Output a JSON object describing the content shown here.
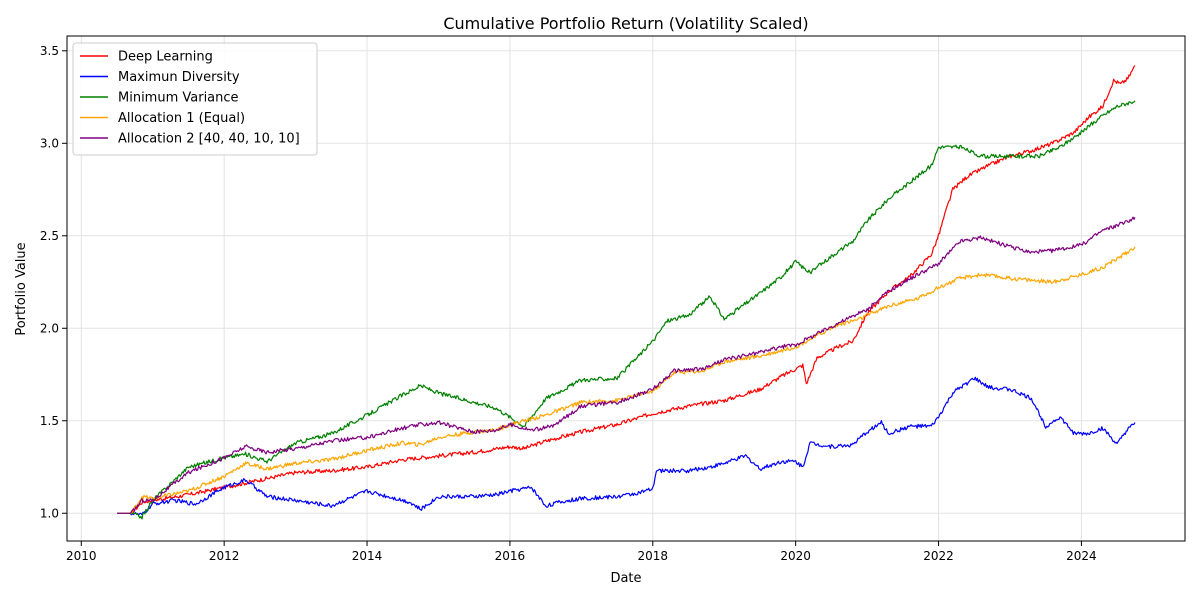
{
  "chart_data": {
    "type": "line",
    "title": "Cumulative Portfolio Return (Volatility Scaled)",
    "xlabel": "Date",
    "ylabel": "Portfolio Value",
    "xlim": [
      2009.8,
      2025.45
    ],
    "ylim": [
      0.85,
      3.58
    ],
    "xticks": [
      2010,
      2012,
      2014,
      2016,
      2018,
      2020,
      2022,
      2024
    ],
    "yticks": [
      1.0,
      1.5,
      2.0,
      2.5,
      3.0,
      3.5
    ],
    "grid": true,
    "legend_position": "top-left",
    "series": [
      {
        "name": "Deep Learning",
        "color": "#ff0000",
        "points": [
          [
            2010.5,
            1.0
          ],
          [
            2010.7,
            1.0
          ],
          [
            2010.85,
            1.06
          ],
          [
            2011.0,
            1.07
          ],
          [
            2011.5,
            1.1
          ],
          [
            2012.0,
            1.14
          ],
          [
            2012.5,
            1.18
          ],
          [
            2013.0,
            1.22
          ],
          [
            2013.5,
            1.23
          ],
          [
            2014.0,
            1.25
          ],
          [
            2014.5,
            1.29
          ],
          [
            2015.0,
            1.31
          ],
          [
            2015.5,
            1.33
          ],
          [
            2016.0,
            1.36
          ],
          [
            2016.2,
            1.35
          ],
          [
            2016.5,
            1.39
          ],
          [
            2017.0,
            1.44
          ],
          [
            2017.5,
            1.48
          ],
          [
            2018.0,
            1.54
          ],
          [
            2018.5,
            1.58
          ],
          [
            2019.0,
            1.61
          ],
          [
            2019.5,
            1.67
          ],
          [
            2019.8,
            1.74
          ],
          [
            2020.1,
            1.8
          ],
          [
            2020.15,
            1.7
          ],
          [
            2020.3,
            1.84
          ],
          [
            2020.6,
            1.9
          ],
          [
            2020.8,
            1.93
          ],
          [
            2021.0,
            2.08
          ],
          [
            2021.3,
            2.2
          ],
          [
            2021.6,
            2.28
          ],
          [
            2021.9,
            2.4
          ],
          [
            2022.0,
            2.5
          ],
          [
            2022.1,
            2.63
          ],
          [
            2022.2,
            2.75
          ],
          [
            2022.4,
            2.82
          ],
          [
            2022.7,
            2.88
          ],
          [
            2023.0,
            2.93
          ],
          [
            2023.3,
            2.96
          ],
          [
            2023.6,
            3.0
          ],
          [
            2023.9,
            3.06
          ],
          [
            2024.1,
            3.14
          ],
          [
            2024.3,
            3.2
          ],
          [
            2024.45,
            3.34
          ],
          [
            2024.55,
            3.32
          ],
          [
            2024.65,
            3.35
          ],
          [
            2024.75,
            3.42
          ]
        ]
      },
      {
        "name": "Maximun Diversity",
        "color": "#0000ff",
        "points": [
          [
            2010.5,
            1.0
          ],
          [
            2010.7,
            1.0
          ],
          [
            2010.85,
            0.99
          ],
          [
            2011.0,
            1.05
          ],
          [
            2011.3,
            1.07
          ],
          [
            2011.6,
            1.05
          ],
          [
            2012.0,
            1.14
          ],
          [
            2012.3,
            1.18
          ],
          [
            2012.6,
            1.09
          ],
          [
            2013.0,
            1.07
          ],
          [
            2013.5,
            1.04
          ],
          [
            2014.0,
            1.12
          ],
          [
            2014.3,
            1.09
          ],
          [
            2014.6,
            1.06
          ],
          [
            2014.75,
            1.02
          ],
          [
            2015.0,
            1.09
          ],
          [
            2015.5,
            1.09
          ],
          [
            2015.8,
            1.1
          ],
          [
            2016.0,
            1.12
          ],
          [
            2016.3,
            1.14
          ],
          [
            2016.5,
            1.04
          ],
          [
            2016.7,
            1.06
          ],
          [
            2017.0,
            1.08
          ],
          [
            2017.5,
            1.09
          ],
          [
            2017.8,
            1.11
          ],
          [
            2018.0,
            1.13
          ],
          [
            2018.05,
            1.23
          ],
          [
            2018.5,
            1.23
          ],
          [
            2018.8,
            1.25
          ],
          [
            2019.0,
            1.27
          ],
          [
            2019.3,
            1.31
          ],
          [
            2019.5,
            1.24
          ],
          [
            2019.8,
            1.28
          ],
          [
            2020.0,
            1.28
          ],
          [
            2020.1,
            1.25
          ],
          [
            2020.2,
            1.38
          ],
          [
            2020.5,
            1.36
          ],
          [
            2020.8,
            1.37
          ],
          [
            2021.0,
            1.44
          ],
          [
            2021.2,
            1.49
          ],
          [
            2021.3,
            1.43
          ],
          [
            2021.6,
            1.47
          ],
          [
            2021.9,
            1.47
          ],
          [
            2022.0,
            1.52
          ],
          [
            2022.2,
            1.65
          ],
          [
            2022.5,
            1.73
          ],
          [
            2022.7,
            1.68
          ],
          [
            2023.0,
            1.67
          ],
          [
            2023.3,
            1.62
          ],
          [
            2023.5,
            1.47
          ],
          [
            2023.7,
            1.52
          ],
          [
            2023.9,
            1.43
          ],
          [
            2024.1,
            1.43
          ],
          [
            2024.3,
            1.46
          ],
          [
            2024.5,
            1.37
          ],
          [
            2024.6,
            1.43
          ],
          [
            2024.75,
            1.49
          ]
        ]
      },
      {
        "name": "Minimum Variance",
        "color": "#008000",
        "points": [
          [
            2010.5,
            1.0
          ],
          [
            2010.7,
            1.0
          ],
          [
            2010.85,
            0.98
          ],
          [
            2011.0,
            1.07
          ],
          [
            2011.5,
            1.25
          ],
          [
            2012.0,
            1.3
          ],
          [
            2012.3,
            1.32
          ],
          [
            2012.6,
            1.28
          ],
          [
            2013.0,
            1.38
          ],
          [
            2013.5,
            1.43
          ],
          [
            2014.0,
            1.53
          ],
          [
            2014.5,
            1.64
          ],
          [
            2014.75,
            1.69
          ],
          [
            2015.0,
            1.65
          ],
          [
            2015.5,
            1.6
          ],
          [
            2015.8,
            1.57
          ],
          [
            2016.0,
            1.52
          ],
          [
            2016.2,
            1.47
          ],
          [
            2016.5,
            1.62
          ],
          [
            2017.0,
            1.72
          ],
          [
            2017.5,
            1.73
          ],
          [
            2018.0,
            1.93
          ],
          [
            2018.2,
            2.04
          ],
          [
            2018.5,
            2.07
          ],
          [
            2018.8,
            2.17
          ],
          [
            2019.0,
            2.05
          ],
          [
            2019.5,
            2.19
          ],
          [
            2019.8,
            2.28
          ],
          [
            2020.0,
            2.36
          ],
          [
            2020.2,
            2.3
          ],
          [
            2020.5,
            2.39
          ],
          [
            2020.8,
            2.47
          ],
          [
            2021.0,
            2.58
          ],
          [
            2021.3,
            2.7
          ],
          [
            2021.6,
            2.79
          ],
          [
            2021.9,
            2.88
          ],
          [
            2022.0,
            2.98
          ],
          [
            2022.3,
            2.98
          ],
          [
            2022.6,
            2.93
          ],
          [
            2023.0,
            2.93
          ],
          [
            2023.4,
            2.93
          ],
          [
            2023.7,
            2.98
          ],
          [
            2024.0,
            3.06
          ],
          [
            2024.3,
            3.15
          ],
          [
            2024.5,
            3.2
          ],
          [
            2024.75,
            3.23
          ]
        ]
      },
      {
        "name": "Allocation 1 (Equal)",
        "color": "#ffa500",
        "points": [
          [
            2010.5,
            1.0
          ],
          [
            2010.7,
            1.0
          ],
          [
            2010.85,
            1.09
          ],
          [
            2011.0,
            1.08
          ],
          [
            2011.5,
            1.12
          ],
          [
            2012.0,
            1.2
          ],
          [
            2012.3,
            1.27
          ],
          [
            2012.6,
            1.24
          ],
          [
            2013.0,
            1.27
          ],
          [
            2013.5,
            1.29
          ],
          [
            2014.0,
            1.34
          ],
          [
            2014.5,
            1.38
          ],
          [
            2014.75,
            1.37
          ],
          [
            2015.0,
            1.41
          ],
          [
            2015.5,
            1.44
          ],
          [
            2015.8,
            1.45
          ],
          [
            2016.0,
            1.48
          ],
          [
            2016.5,
            1.53
          ],
          [
            2017.0,
            1.6
          ],
          [
            2017.5,
            1.61
          ],
          [
            2018.0,
            1.66
          ],
          [
            2018.3,
            1.76
          ],
          [
            2018.7,
            1.77
          ],
          [
            2019.0,
            1.82
          ],
          [
            2019.5,
            1.85
          ],
          [
            2019.8,
            1.88
          ],
          [
            2020.0,
            1.9
          ],
          [
            2020.3,
            1.96
          ],
          [
            2020.6,
            2.02
          ],
          [
            2020.9,
            2.05
          ],
          [
            2021.0,
            2.07
          ],
          [
            2021.3,
            2.12
          ],
          [
            2021.7,
            2.16
          ],
          [
            2022.0,
            2.22
          ],
          [
            2022.3,
            2.27
          ],
          [
            2022.6,
            2.29
          ],
          [
            2023.0,
            2.27
          ],
          [
            2023.3,
            2.26
          ],
          [
            2023.6,
            2.25
          ],
          [
            2024.0,
            2.29
          ],
          [
            2024.3,
            2.33
          ],
          [
            2024.6,
            2.4
          ],
          [
            2024.75,
            2.44
          ]
        ]
      },
      {
        "name": "Allocation 2 [40, 40, 10, 10]",
        "color": "#800080",
        "points": [
          [
            2010.5,
            1.0
          ],
          [
            2010.7,
            1.0
          ],
          [
            2010.85,
            1.07
          ],
          [
            2011.0,
            1.07
          ],
          [
            2011.5,
            1.22
          ],
          [
            2012.0,
            1.3
          ],
          [
            2012.3,
            1.36
          ],
          [
            2012.6,
            1.33
          ],
          [
            2013.0,
            1.35
          ],
          [
            2013.5,
            1.39
          ],
          [
            2014.0,
            1.41
          ],
          [
            2014.5,
            1.46
          ],
          [
            2014.75,
            1.48
          ],
          [
            2015.0,
            1.49
          ],
          [
            2015.5,
            1.44
          ],
          [
            2015.8,
            1.45
          ],
          [
            2016.0,
            1.48
          ],
          [
            2016.3,
            1.45
          ],
          [
            2016.6,
            1.47
          ],
          [
            2017.0,
            1.58
          ],
          [
            2017.5,
            1.6
          ],
          [
            2018.0,
            1.67
          ],
          [
            2018.3,
            1.77
          ],
          [
            2018.7,
            1.78
          ],
          [
            2019.0,
            1.83
          ],
          [
            2019.5,
            1.87
          ],
          [
            2019.8,
            1.9
          ],
          [
            2020.0,
            1.91
          ],
          [
            2020.3,
            1.97
          ],
          [
            2020.6,
            2.03
          ],
          [
            2021.0,
            2.1
          ],
          [
            2021.3,
            2.2
          ],
          [
            2021.7,
            2.29
          ],
          [
            2022.0,
            2.35
          ],
          [
            2022.3,
            2.47
          ],
          [
            2022.6,
            2.49
          ],
          [
            2023.0,
            2.44
          ],
          [
            2023.3,
            2.41
          ],
          [
            2023.6,
            2.42
          ],
          [
            2024.0,
            2.45
          ],
          [
            2024.3,
            2.53
          ],
          [
            2024.6,
            2.57
          ],
          [
            2024.75,
            2.6
          ]
        ]
      }
    ]
  }
}
